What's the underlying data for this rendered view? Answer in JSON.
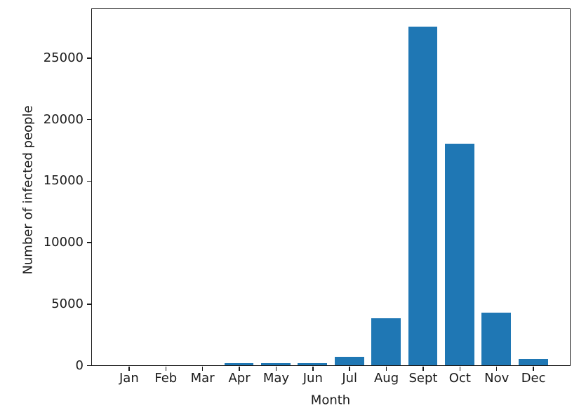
{
  "chart_data": {
    "type": "bar",
    "xlabel": "Month",
    "ylabel": "Number of infected people",
    "categories": [
      "Jan",
      "Feb",
      "Mar",
      "Apr",
      "May",
      "Jun",
      "Jul",
      "Aug",
      "Sept",
      "Oct",
      "Nov",
      "Dec"
    ],
    "values": [
      0,
      0,
      0,
      200,
      200,
      150,
      700,
      3800,
      27500,
      18000,
      4300,
      500
    ],
    "ylim": [
      0,
      28950
    ],
    "yticks": [
      0,
      5000,
      10000,
      15000,
      20000,
      25000
    ],
    "ytick_labels": [
      "0",
      "5000",
      "10000",
      "15000",
      "20000",
      "25000"
    ],
    "bar_color": "#1f77b4",
    "axis_color": "#1a1a1a",
    "background_color": "#ffffff",
    "grid": false,
    "legend_position": "none",
    "bar_width_fraction": 0.8
  }
}
